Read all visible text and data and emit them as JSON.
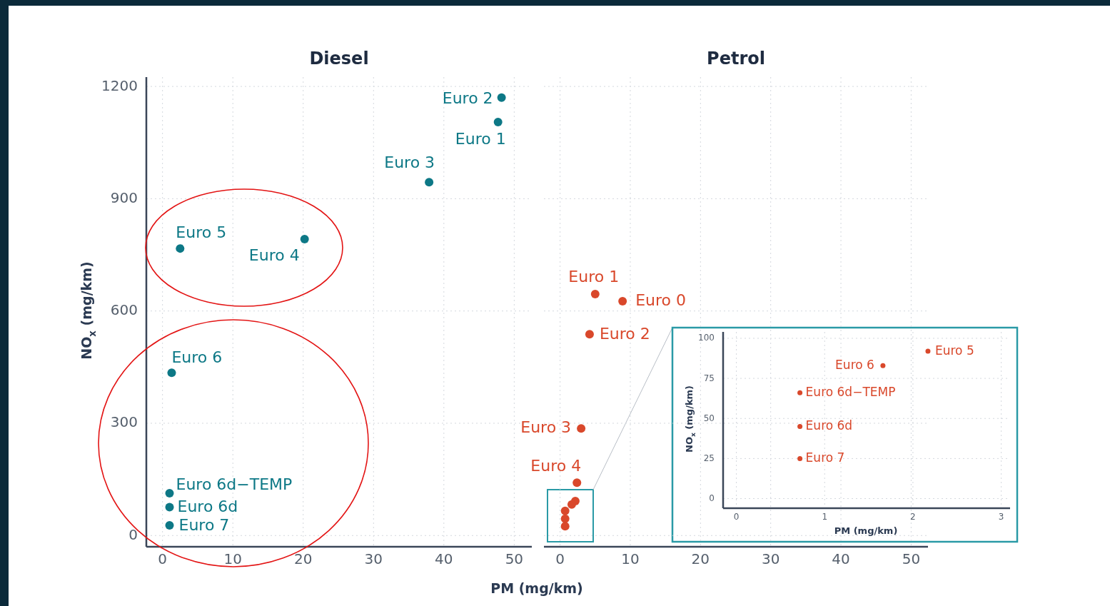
{
  "chart_data": [
    {
      "type": "scatter",
      "title": "Diesel",
      "xlabel": "PM (mg/km)",
      "ylabel": "NO$_{x}$ (mg/km)",
      "xlim": [
        -2.3,
        52.5
      ],
      "ylim": [
        -30,
        1225
      ],
      "xticks": [
        0,
        10,
        20,
        30,
        40,
        50
      ],
      "yticks": [
        0,
        300,
        600,
        900,
        1200
      ],
      "grid": true,
      "marker": "circle",
      "series": [
        {
          "color": "#0d7886",
          "x": [
            48.2,
            47.7,
            37.9,
            20.2,
            2.5,
            1.3,
            1.0,
            1.0,
            1.0
          ],
          "values": [
            1170,
            1105,
            944,
            792,
            767,
            435,
            113,
            76,
            27
          ]
        }
      ],
      "annotations": [
        {
          "text": "Euro 2",
          "x": 48.2,
          "y": 1170
        },
        {
          "text": "Euro 1",
          "x": 47.7,
          "y": 1105
        },
        {
          "text": "Euro 3",
          "x": 37.9,
          "y": 944
        },
        {
          "text": "Euro 4",
          "x": 20.2,
          "y": 792
        },
        {
          "text": "Euro 5",
          "x": 2.5,
          "y": 767
        },
        {
          "text": "Euro 6",
          "x": 1.3,
          "y": 435
        },
        {
          "text": "Euro 6d−TEMP",
          "x": 1.0,
          "y": 113
        },
        {
          "text": "Euro 6d",
          "x": 1.0,
          "y": 76
        },
        {
          "text": "Euro 7",
          "x": 1.0,
          "y": 27
        }
      ]
    },
    {
      "type": "scatter",
      "title": "Petrol",
      "xlim": [
        -2.3,
        52.4
      ],
      "ylim": [
        -30,
        1225
      ],
      "xticks": [
        0,
        10,
        20,
        30,
        40,
        50
      ],
      "yticks": [
        0,
        300,
        600,
        900,
        1200
      ],
      "grid": true,
      "marker": "circle",
      "tick_labels": "x",
      "series": [
        {
          "color": "#d9482b",
          "x": [
            5.0,
            8.9,
            4.2,
            3.0,
            2.4,
            2.17,
            1.66,
            0.72,
            0.72,
            0.72
          ],
          "values": [
            645,
            626,
            538,
            286,
            141,
            92,
            83,
            66,
            45,
            25
          ]
        }
      ],
      "annotations": [
        {
          "text": "Euro 1",
          "x": 5.0,
          "y": 645
        },
        {
          "text": "Euro 0",
          "x": 8.9,
          "y": 626
        },
        {
          "text": "Euro 2",
          "x": 4.2,
          "y": 538
        },
        {
          "text": "Euro 3",
          "x": 3.0,
          "y": 286
        },
        {
          "text": "Euro 4",
          "x": 2.4,
          "y": 141
        }
      ]
    },
    {
      "type": "scatter",
      "xlabel": "PM (mg/km)",
      "ylabel": "NO$_{x}$ (mg/km)",
      "xlim": [
        -0.15,
        3.1
      ],
      "ylim": [
        -6,
        104
      ],
      "xticks": [
        0,
        1,
        2,
        3
      ],
      "yticks": [
        0,
        25,
        50,
        75,
        100
      ],
      "grid": true,
      "marker": "circle",
      "series": [
        {
          "color": "#d9482b",
          "x": [
            2.17,
            1.66,
            0.72,
            0.72,
            0.72
          ],
          "values": [
            92,
            83,
            66,
            45,
            25
          ]
        }
      ],
      "annotations": [
        {
          "text": "Euro 5",
          "x": 2.17,
          "y": 92
        },
        {
          "text": "Euro 6",
          "x": 1.66,
          "y": 83
        },
        {
          "text": "Euro 6d−TEMP",
          "x": 0.72,
          "y": 66
        },
        {
          "text": "Euro 6d",
          "x": 0.72,
          "y": 45
        },
        {
          "text": "Euro 7",
          "x": 0.72,
          "y": 25
        }
      ]
    }
  ]
}
